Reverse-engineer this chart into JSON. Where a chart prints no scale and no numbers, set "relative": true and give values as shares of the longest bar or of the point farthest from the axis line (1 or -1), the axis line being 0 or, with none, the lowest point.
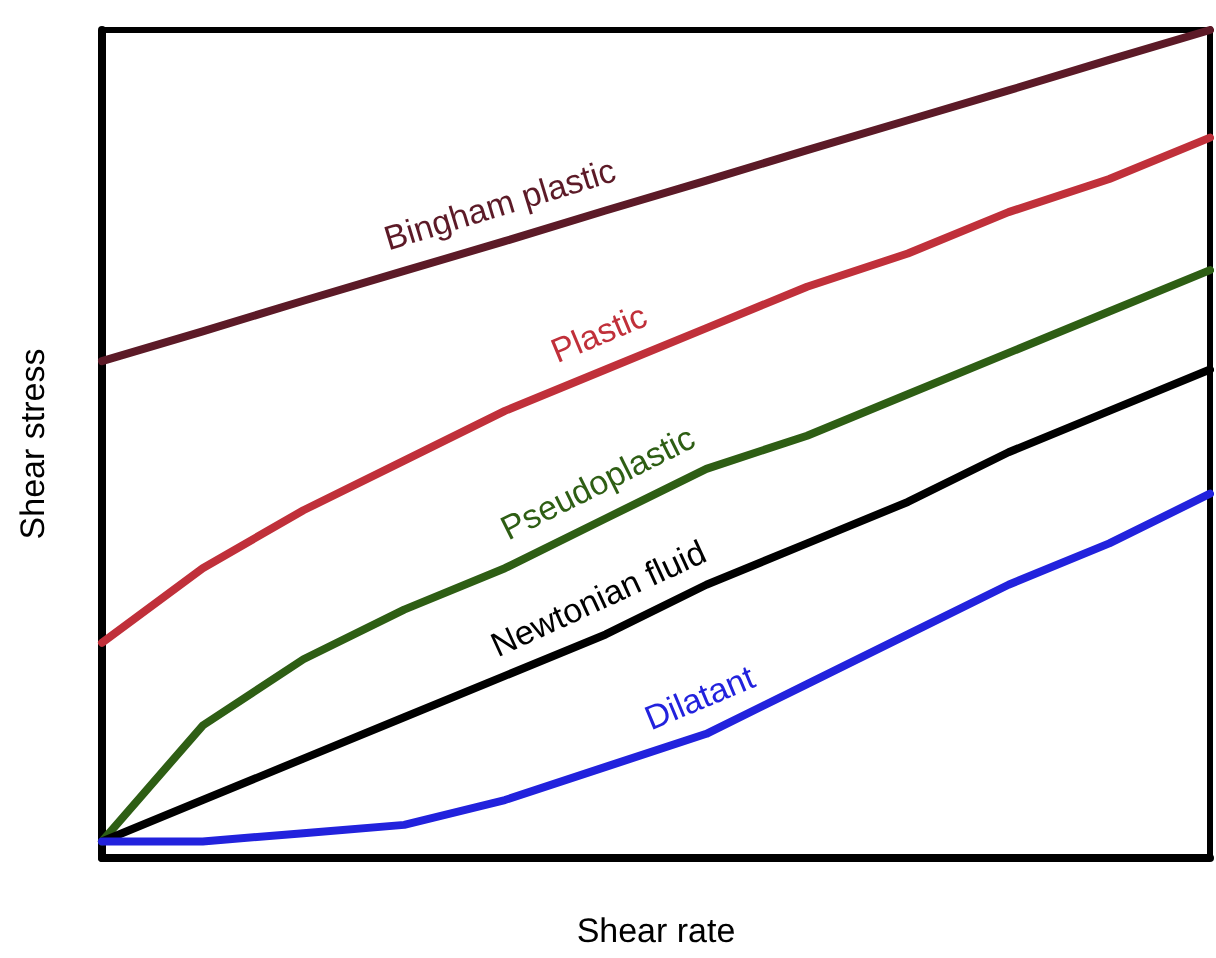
{
  "chart_data": {
    "type": "line",
    "xlabel": "Shear rate",
    "ylabel": "Shear stress",
    "relative": true,
    "marker": "none",
    "line_style": "solid",
    "categories": [
      null,
      null,
      null,
      null,
      null,
      null,
      null,
      null,
      null,
      null,
      null,
      null
    ],
    "series": [
      {
        "name": "Bingham plastic",
        "color": "#5c1a27",
        "values": [
          0.6,
          0.636,
          0.673,
          0.709,
          0.745,
          0.782,
          0.818,
          0.855,
          0.891,
          0.927,
          0.964,
          1
        ]
      },
      {
        "name": "Plastic",
        "color": "#c0303a",
        "values": [
          0.26,
          0.35,
          0.42,
          0.48,
          0.54,
          0.59,
          0.64,
          0.69,
          0.73,
          0.78,
          0.82,
          0.87
        ]
      },
      {
        "name": "Pseudoplastic",
        "color": "#2e5e14",
        "values": [
          0.02,
          0.16,
          0.24,
          0.3,
          0.35,
          0.41,
          0.47,
          0.51,
          0.56,
          0.61,
          0.66,
          0.71
        ]
      },
      {
        "name": "Newtonian fluid",
        "color": "#000000",
        "values": [
          0.02,
          0.07,
          0.12,
          0.17,
          0.22,
          0.27,
          0.33,
          0.38,
          0.43,
          0.49,
          0.54,
          0.59
        ]
      },
      {
        "name": "Dilatant",
        "color": "#2222dd",
        "values": [
          0.02,
          0.02,
          0.03,
          0.04,
          0.07,
          0.11,
          0.15,
          0.21,
          0.27,
          0.33,
          0.38,
          0.44
        ]
      }
    ]
  }
}
